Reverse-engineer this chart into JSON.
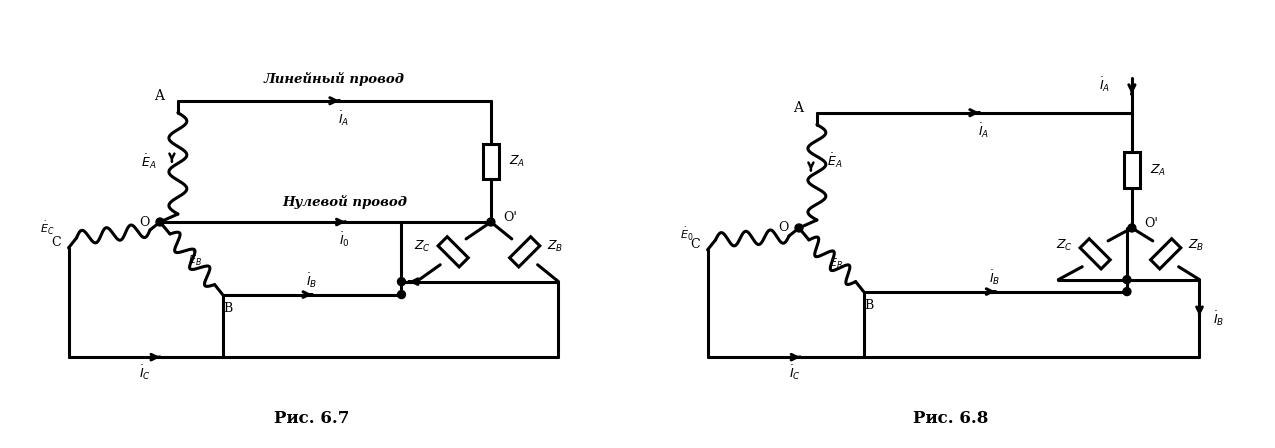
{
  "fig_width": 12.75,
  "fig_height": 4.48,
  "dpi": 100,
  "bg_color": "#ffffff",
  "lw": 2.2,
  "fig67_caption": "Рис. 6.7",
  "fig68_caption": "Рис. 6.8",
  "label_lin": "Линейный провод",
  "label_nul": "Нулевой провод"
}
